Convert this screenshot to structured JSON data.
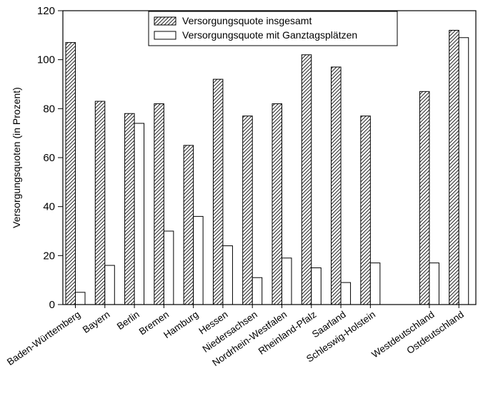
{
  "chart_data": {
    "type": "bar",
    "ylabel": "Versorgungsquoten (in Prozent)",
    "ylim": [
      0,
      120
    ],
    "yticks": [
      0,
      20,
      40,
      60,
      80,
      100,
      120
    ],
    "categories": [
      "Baden-Württemberg",
      "Bayern",
      "Berlin",
      "Bremen",
      "Hamburg",
      "Hessen",
      "Niedersachsen",
      "Nordrhein-Westfalen",
      "Rheinland-Pfalz",
      "Saarland",
      "Schleswig-Holstein",
      "",
      "Westdeutschland",
      "Ostdeutschland"
    ],
    "series": [
      {
        "name": "Versorgungsquote insgesamt",
        "pattern": "diagonal-hatch",
        "values": [
          107,
          83,
          78,
          82,
          65,
          92,
          77,
          82,
          102,
          97,
          77,
          null,
          87,
          112
        ]
      },
      {
        "name": "Versorgungsquote mit Ganztagsplätzen",
        "pattern": "none",
        "values": [
          5,
          16,
          74,
          30,
          36,
          24,
          11,
          19,
          15,
          9,
          17,
          null,
          17,
          109
        ]
      }
    ],
    "legend": {
      "position": "top-center"
    },
    "grid": false
  }
}
